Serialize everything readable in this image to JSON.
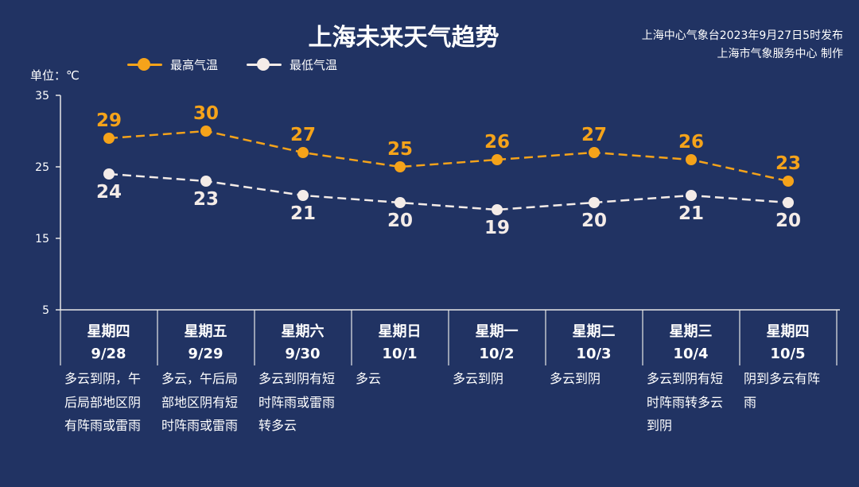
{
  "title": "上海未来天气趋势",
  "issuer": {
    "line1": "上海中心气象台2023年9月27日5时发布",
    "line2": "上海市气象服务中心 制作"
  },
  "unit": "单位：℃",
  "colors": {
    "background": "#213363",
    "high": "#f5a31a",
    "low": "#f4ece8",
    "axis": "#e8e8e8"
  },
  "chart_data": {
    "type": "line",
    "ylim": [
      5,
      35
    ],
    "yticks": [
      5,
      15,
      25,
      35
    ],
    "legend_position": "top-left",
    "categories": [
      {
        "weekday": "星期四",
        "date": "9/28",
        "weather": "多云到阴，午后局部地区阴有阵雨或雷雨"
      },
      {
        "weekday": "星期五",
        "date": "9/29",
        "weather": "多云，午后局部地区阴有短时阵雨或雷雨"
      },
      {
        "weekday": "星期六",
        "date": "9/30",
        "weather": "多云到阴有短时阵雨或雷雨转多云"
      },
      {
        "weekday": "星期日",
        "date": "10/1",
        "weather": "多云"
      },
      {
        "weekday": "星期一",
        "date": "10/2",
        "weather": "多云到阴"
      },
      {
        "weekday": "星期二",
        "date": "10/3",
        "weather": "多云到阴"
      },
      {
        "weekday": "星期三",
        "date": "10/4",
        "weather": "多云到阴有短时阵雨转多云到阴"
      },
      {
        "weekday": "星期四",
        "date": "10/5",
        "weather": "阴到多云有阵雨"
      }
    ],
    "series": [
      {
        "name": "最高气温",
        "values": [
          29,
          30,
          27,
          25,
          26,
          27,
          26,
          23
        ]
      },
      {
        "name": "最低气温",
        "values": [
          24,
          23,
          21,
          20,
          19,
          20,
          21,
          20
        ]
      }
    ]
  }
}
